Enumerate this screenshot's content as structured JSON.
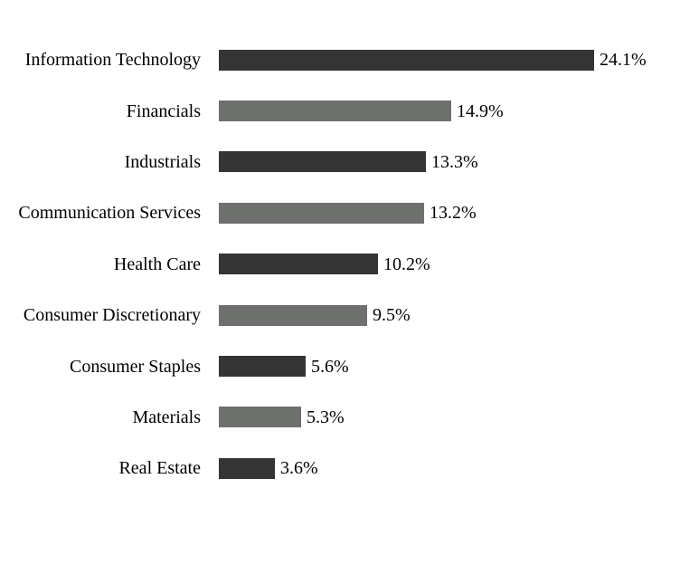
{
  "chart_data": {
    "type": "bar",
    "orientation": "horizontal",
    "title": "",
    "xlabel": "",
    "ylabel": "",
    "xlim": [
      0,
      25
    ],
    "grid": false,
    "legend": false,
    "categories": [
      "Information Technology",
      "Financials",
      "Industrials",
      "Communication Services",
      "Health Care",
      "Consumer Discretionary",
      "Consumer Staples",
      "Materials",
      "Real Estate"
    ],
    "values": [
      24.1,
      14.9,
      13.3,
      13.2,
      10.2,
      9.5,
      5.6,
      5.3,
      3.6
    ],
    "value_labels": [
      "24.1%",
      "14.9%",
      "13.3%",
      "13.2%",
      "10.2%",
      "9.5%",
      "5.6%",
      "5.3%",
      "3.6%"
    ],
    "colors": {
      "bar_dark": "#333433",
      "bar_gray": "#6e706e",
      "background": "#ffffff",
      "text": "#000000"
    },
    "bar_color_pattern": [
      "bar_dark",
      "bar_gray",
      "bar_dark",
      "bar_gray",
      "bar_dark",
      "bar_gray",
      "bar_dark",
      "bar_gray",
      "bar_dark"
    ]
  }
}
